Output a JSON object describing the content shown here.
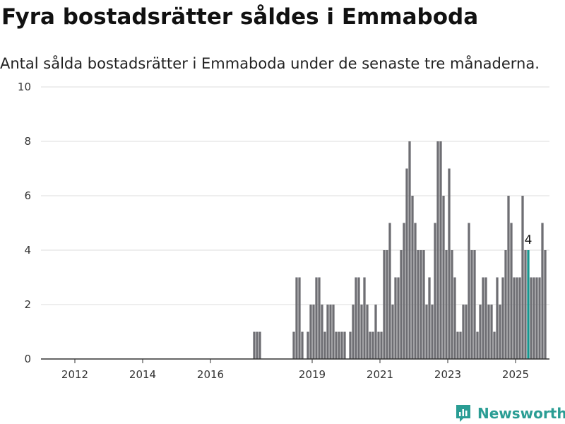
{
  "header": {
    "title": "Fyra bostadsrätter såldes i Emmaboda",
    "subtitle": "Antal sålda bostadsrätter i Emmaboda under de senaste tre månaderna."
  },
  "brand": {
    "name": "Newsworthy",
    "icon": "newsworthy-logo-icon",
    "color": "#2a9d94"
  },
  "colors": {
    "bars": "#6e6e73",
    "highlight": "#17968f",
    "grid": "#dddddd",
    "axis": "#333333"
  },
  "chart_data": {
    "type": "bar",
    "x_unit": "month",
    "x_start": "2011-04",
    "x_labels": [
      "2012",
      "2014",
      "2016",
      "2019",
      "2021",
      "2023",
      "2025"
    ],
    "xlim": [
      "2011-01",
      "2025-12"
    ],
    "ylim": [
      0,
      10
    ],
    "yticks": [
      0,
      2,
      4,
      6,
      8,
      10
    ],
    "grid": true,
    "highlight": {
      "month": "2025-05",
      "value": 4,
      "label": "4"
    },
    "values": [
      0,
      0,
      0,
      0,
      0,
      0,
      0,
      0,
      0,
      0,
      0,
      0,
      0,
      0,
      0,
      0,
      0,
      0,
      0,
      0,
      0,
      0,
      0,
      0,
      0,
      0,
      0,
      0,
      0,
      0,
      0,
      0,
      0,
      0,
      0,
      0,
      0,
      0,
      0,
      0,
      0,
      0,
      0,
      0,
      0,
      0,
      0,
      0,
      0,
      0,
      0,
      0,
      0,
      0,
      0,
      0,
      0,
      0,
      0,
      0,
      0,
      0,
      0,
      0,
      0,
      0,
      0,
      0,
      0,
      0,
      0,
      0,
      1,
      1,
      1,
      0,
      0,
      0,
      0,
      0,
      0,
      0,
      0,
      0,
      0,
      0,
      1,
      3,
      3,
      1,
      0,
      1,
      2,
      2,
      3,
      3,
      2,
      1,
      2,
      2,
      2,
      1,
      1,
      1,
      1,
      0,
      1,
      2,
      3,
      3,
      2,
      3,
      2,
      1,
      1,
      2,
      1,
      1,
      4,
      4,
      5,
      2,
      3,
      3,
      4,
      5,
      7,
      8,
      6,
      5,
      4,
      4,
      4,
      2,
      3,
      2,
      5,
      8,
      8,
      6,
      4,
      7,
      4,
      3,
      1,
      1,
      2,
      2,
      5,
      4,
      4,
      1,
      2,
      3,
      3,
      2,
      2,
      1,
      3,
      2,
      3,
      4,
      6,
      5,
      3,
      3,
      3,
      6,
      4,
      4,
      3,
      3,
      3,
      3,
      5,
      4
    ]
  }
}
